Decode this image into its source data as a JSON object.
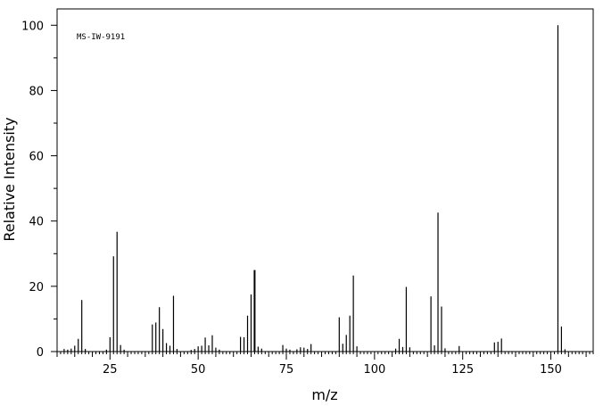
{
  "chart_data": {
    "type": "bar",
    "title": "",
    "annotation": "MS-IW-9191",
    "xlabel": "m/z",
    "ylabel": "Relative Intensity",
    "xlim": [
      10,
      162
    ],
    "ylim": [
      0,
      105
    ],
    "x_ticks": [
      25,
      50,
      75,
      100,
      125,
      150
    ],
    "y_ticks": [
      0,
      20,
      40,
      60,
      80,
      100
    ],
    "grid": false,
    "peaks": [
      {
        "x": 12,
        "y": 0.8
      },
      {
        "x": 13,
        "y": 0.6
      },
      {
        "x": 14,
        "y": 0.9
      },
      {
        "x": 15,
        "y": 1.8
      },
      {
        "x": 16,
        "y": 3.9
      },
      {
        "x": 17,
        "y": 15.8
      },
      {
        "x": 18,
        "y": 0.8
      },
      {
        "x": 24,
        "y": 0.6
      },
      {
        "x": 25,
        "y": 4.4
      },
      {
        "x": 26,
        "y": 29.2
      },
      {
        "x": 27,
        "y": 36.7
      },
      {
        "x": 28,
        "y": 2.0
      },
      {
        "x": 29,
        "y": 0.6
      },
      {
        "x": 37,
        "y": 8.3
      },
      {
        "x": 38,
        "y": 8.9
      },
      {
        "x": 39,
        "y": 13.6
      },
      {
        "x": 40,
        "y": 6.9
      },
      {
        "x": 41,
        "y": 2.6
      },
      {
        "x": 42,
        "y": 1.8
      },
      {
        "x": 43,
        "y": 17.1
      },
      {
        "x": 44,
        "y": 0.8
      },
      {
        "x": 48,
        "y": 0.5
      },
      {
        "x": 49,
        "y": 0.8
      },
      {
        "x": 50,
        "y": 1.6
      },
      {
        "x": 51,
        "y": 1.8
      },
      {
        "x": 52,
        "y": 4.3
      },
      {
        "x": 53,
        "y": 1.9
      },
      {
        "x": 54,
        "y": 5.0
      },
      {
        "x": 55,
        "y": 1.2
      },
      {
        "x": 56,
        "y": 0.6
      },
      {
        "x": 62,
        "y": 4.5
      },
      {
        "x": 63,
        "y": 4.4
      },
      {
        "x": 64,
        "y": 11.0
      },
      {
        "x": 65,
        "y": 17.5
      },
      {
        "x": 66,
        "y": 25.0
      },
      {
        "x": 67,
        "y": 1.5
      },
      {
        "x": 68,
        "y": 0.9
      },
      {
        "x": 74,
        "y": 2.0
      },
      {
        "x": 75,
        "y": 0.9
      },
      {
        "x": 76,
        "y": 0.6
      },
      {
        "x": 78,
        "y": 0.7
      },
      {
        "x": 79,
        "y": 1.3
      },
      {
        "x": 80,
        "y": 1.2
      },
      {
        "x": 81,
        "y": 0.8
      },
      {
        "x": 82,
        "y": 2.3
      },
      {
        "x": 90,
        "y": 10.5
      },
      {
        "x": 91,
        "y": 2.4
      },
      {
        "x": 92,
        "y": 5.1
      },
      {
        "x": 93,
        "y": 11.0
      },
      {
        "x": 94,
        "y": 23.3
      },
      {
        "x": 95,
        "y": 1.6
      },
      {
        "x": 106,
        "y": 0.9
      },
      {
        "x": 107,
        "y": 3.9
      },
      {
        "x": 108,
        "y": 1.4
      },
      {
        "x": 109,
        "y": 19.8
      },
      {
        "x": 110,
        "y": 1.3
      },
      {
        "x": 116,
        "y": 16.9
      },
      {
        "x": 117,
        "y": 1.9
      },
      {
        "x": 118,
        "y": 42.6
      },
      {
        "x": 119,
        "y": 13.8
      },
      {
        "x": 120,
        "y": 1.0
      },
      {
        "x": 124,
        "y": 1.7
      },
      {
        "x": 134,
        "y": 2.8
      },
      {
        "x": 135,
        "y": 3.0
      },
      {
        "x": 136,
        "y": 4.0
      },
      {
        "x": 152,
        "y": 100
      },
      {
        "x": 153,
        "y": 7.7
      },
      {
        "x": 154,
        "y": 0.7
      }
    ]
  }
}
